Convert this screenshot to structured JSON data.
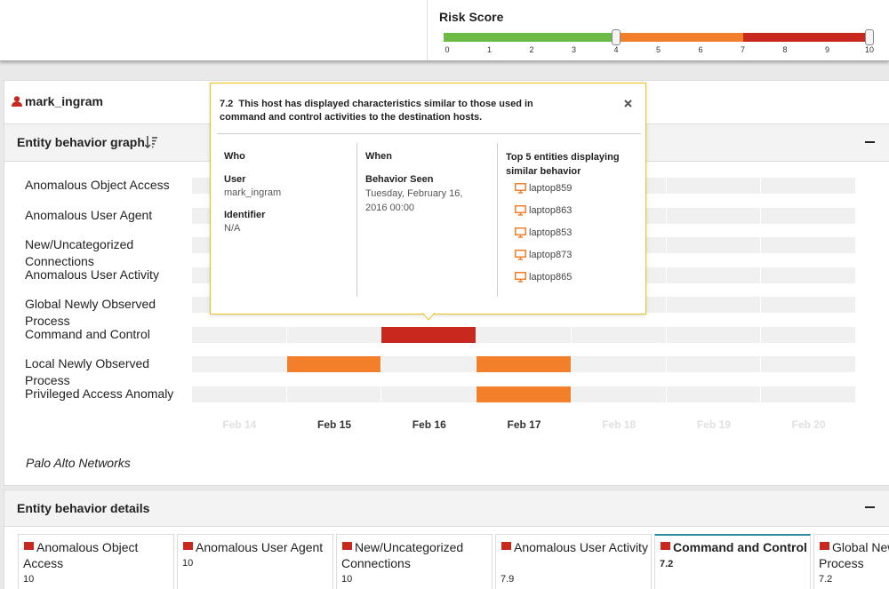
{
  "risk_score": {
    "title": "Risk Score",
    "range": [
      0,
      10
    ],
    "ticks": [
      0,
      1,
      2,
      3,
      4,
      5,
      6,
      7,
      8,
      9,
      10
    ],
    "bands": [
      {
        "to": 4,
        "color": "#6cbb45"
      },
      {
        "to": 7,
        "color": "#f47f2a"
      },
      {
        "to": 10,
        "color": "#c8281e"
      }
    ],
    "handles": [
      4,
      10
    ]
  },
  "user": "mark_ingram",
  "graph": {
    "title": "Entity behavior graph",
    "dates": [
      {
        "label": "Feb 14",
        "active": false
      },
      {
        "label": "Feb 15",
        "active": true
      },
      {
        "label": "Feb 16",
        "active": true
      },
      {
        "label": "Feb 17",
        "active": true
      },
      {
        "label": "Feb 18",
        "active": false
      },
      {
        "label": "Feb 19",
        "active": false
      },
      {
        "label": "Feb 20",
        "active": false
      }
    ],
    "rows": [
      {
        "label": "Anomalous Object Access",
        "cells": [
          null,
          null,
          null,
          null,
          null,
          null,
          null
        ]
      },
      {
        "label": "Anomalous User Agent",
        "cells": [
          null,
          null,
          null,
          null,
          null,
          null,
          null
        ]
      },
      {
        "label": "New/Uncategorized Connections",
        "cells": [
          null,
          null,
          null,
          null,
          null,
          null,
          null
        ]
      },
      {
        "label": "Anomalous User Activity",
        "cells": [
          null,
          null,
          null,
          null,
          null,
          null,
          null
        ]
      },
      {
        "label": "Global Newly Observed Process",
        "cells": [
          null,
          null,
          null,
          null,
          null,
          null,
          null
        ]
      },
      {
        "label": "Command and Control",
        "cells": [
          null,
          null,
          "#c8281e",
          null,
          null,
          null,
          null
        ]
      },
      {
        "label": "Local Newly Observed Process",
        "cells": [
          null,
          "#f47f2a",
          null,
          "#f47f2a",
          null,
          null,
          null
        ]
      },
      {
        "label": "Privileged Access Anomaly",
        "cells": [
          null,
          null,
          null,
          "#f47f2a",
          null,
          null,
          null
        ]
      }
    ],
    "footer": "Palo Alto Networks"
  },
  "tooltip": {
    "score": 7.2,
    "text": "This host has displayed characteristics similar to those used in command and control activities to the destination hosts.",
    "who": {
      "heading": "Who",
      "user_label": "User",
      "user": "mark_ingram",
      "identifier_label": "Identifier",
      "identifier": "N/A"
    },
    "when": {
      "heading": "When",
      "seen_label": "Behavior Seen",
      "seen": "Tuesday, February 16, 2016 00:00"
    },
    "similar": {
      "heading": "Top 5 entities displaying similar behavior",
      "entities": [
        "laptop859",
        "laptop863",
        "laptop853",
        "laptop873",
        "laptop865"
      ]
    }
  },
  "details": {
    "title": "Entity behavior details",
    "cards": [
      {
        "name": "Anomalous Object Access",
        "score": 10,
        "selected": false
      },
      {
        "name": "Anomalous User Agent",
        "score": 10,
        "selected": false
      },
      {
        "name": "New/Uncategorized Connections",
        "score": 10,
        "selected": false
      },
      {
        "name": "Anomalous User Activity",
        "score": 7.9,
        "selected": false
      },
      {
        "name": "Command and Control",
        "score": 7.2,
        "selected": true
      },
      {
        "name": "Global Newly Observed Process",
        "score": 7.2,
        "selected": false
      }
    ]
  }
}
